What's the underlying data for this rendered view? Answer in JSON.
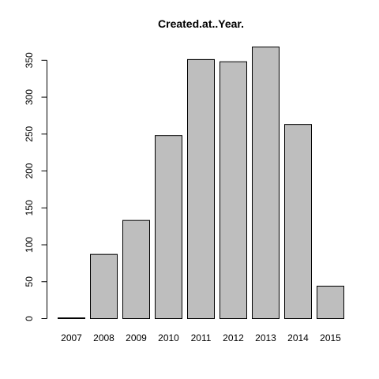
{
  "chart_data": {
    "type": "bar",
    "title": "Created.at..Year.",
    "xlabel": "",
    "ylabel": "",
    "categories": [
      "2007",
      "2008",
      "2009",
      "2010",
      "2011",
      "2012",
      "2013",
      "2014",
      "2015"
    ],
    "values": [
      1,
      87,
      133,
      248,
      351,
      348,
      368,
      263,
      44
    ],
    "ylim": [
      0,
      368
    ],
    "y_ticks": [
      0,
      50,
      100,
      150,
      200,
      250,
      300,
      350
    ],
    "bar_color": "#bebebe",
    "border_color": "#000000",
    "grid": false
  }
}
